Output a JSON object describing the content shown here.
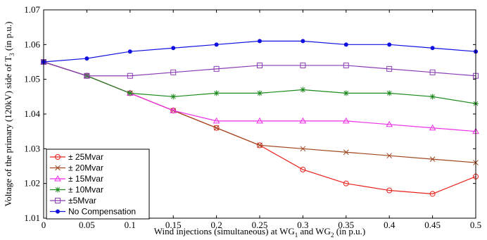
{
  "chart_data": {
    "type": "line",
    "x": [
      0,
      0.05,
      0.1,
      0.15,
      0.2,
      0.25,
      0.3,
      0.35,
      0.4,
      0.45,
      0.5
    ],
    "x_ticks": [
      "0",
      "0.05",
      "0.1",
      "0.15",
      "0.2",
      "0.25",
      "0.3",
      "0.35",
      "0.4",
      "0.45",
      "0.5"
    ],
    "y_ticks": [
      "1.01",
      "1.02",
      "1.03",
      "1.04",
      "1.05",
      "1.06",
      "1.07"
    ],
    "xlim": [
      0,
      0.5
    ],
    "ylim": [
      1.01,
      1.07
    ],
    "xlabel": {
      "pre": "Wind injections (simultaneous) at WG",
      "sub1": "1",
      "mid": " and WG",
      "sub2": "2",
      "post": " (in p.u.)"
    },
    "ylabel": {
      "pre": "Voltage of the primary (120kV) side of T",
      "sub": "3",
      "post": " (in p.u.)"
    },
    "grid": false,
    "legend_position": "bottom-left",
    "series": [
      {
        "name": "± 25Mvar",
        "color": "#e8201b",
        "marker": "circle",
        "values": [
          1.055,
          1.051,
          1.046,
          1.041,
          1.036,
          1.031,
          1.024,
          1.02,
          1.018,
          1.017,
          1.022
        ]
      },
      {
        "name": "± 20Mvar",
        "color": "#a0461e",
        "marker": "x",
        "values": [
          1.055,
          1.051,
          1.046,
          1.041,
          1.036,
          1.031,
          1.03,
          1.029,
          1.028,
          1.027,
          1.026
        ]
      },
      {
        "name": "± 15Mvar",
        "color": "#ee2ee6",
        "marker": "triangle",
        "values": [
          1.055,
          1.051,
          1.046,
          1.041,
          1.038,
          1.038,
          1.038,
          1.038,
          1.037,
          1.036,
          1.035
        ]
      },
      {
        "name": "± 10Mvar",
        "color": "#1d8a1d",
        "marker": "star",
        "values": [
          1.055,
          1.051,
          1.046,
          1.045,
          1.046,
          1.046,
          1.047,
          1.046,
          1.046,
          1.045,
          1.043
        ]
      },
      {
        "name": "±5Mvar",
        "color": "#8a3db3",
        "marker": "square",
        "values": [
          1.055,
          1.051,
          1.051,
          1.052,
          1.053,
          1.054,
          1.054,
          1.054,
          1.053,
          1.052,
          1.051
        ]
      },
      {
        "name": "No Compensation",
        "color": "#1010e0",
        "marker": "dot",
        "values": [
          1.055,
          1.056,
          1.058,
          1.059,
          1.06,
          1.061,
          1.061,
          1.06,
          1.06,
          1.059,
          1.058
        ]
      }
    ]
  }
}
